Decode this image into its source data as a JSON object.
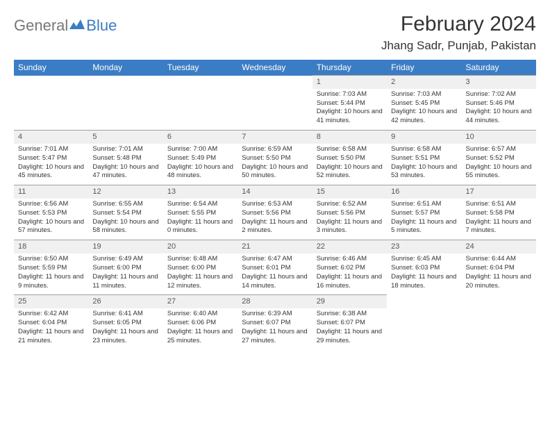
{
  "logo": {
    "text1": "General",
    "text2": "Blue"
  },
  "title": "February 2024",
  "location": "Jhang Sadr, Punjab, Pakistan",
  "colors": {
    "header_bg": "#3b7dc4",
    "header_text": "#ffffff",
    "daynum_bg": "#f0f0f0",
    "border": "#a0a0a0",
    "body_text": "#333333"
  },
  "day_headers": [
    "Sunday",
    "Monday",
    "Tuesday",
    "Wednesday",
    "Thursday",
    "Friday",
    "Saturday"
  ],
  "weeks": [
    [
      {
        "n": "",
        "sr": "",
        "ss": "",
        "dl": ""
      },
      {
        "n": "",
        "sr": "",
        "ss": "",
        "dl": ""
      },
      {
        "n": "",
        "sr": "",
        "ss": "",
        "dl": ""
      },
      {
        "n": "",
        "sr": "",
        "ss": "",
        "dl": ""
      },
      {
        "n": "1",
        "sr": "Sunrise: 7:03 AM",
        "ss": "Sunset: 5:44 PM",
        "dl": "Daylight: 10 hours and 41 minutes."
      },
      {
        "n": "2",
        "sr": "Sunrise: 7:03 AM",
        "ss": "Sunset: 5:45 PM",
        "dl": "Daylight: 10 hours and 42 minutes."
      },
      {
        "n": "3",
        "sr": "Sunrise: 7:02 AM",
        "ss": "Sunset: 5:46 PM",
        "dl": "Daylight: 10 hours and 44 minutes."
      }
    ],
    [
      {
        "n": "4",
        "sr": "Sunrise: 7:01 AM",
        "ss": "Sunset: 5:47 PM",
        "dl": "Daylight: 10 hours and 45 minutes."
      },
      {
        "n": "5",
        "sr": "Sunrise: 7:01 AM",
        "ss": "Sunset: 5:48 PM",
        "dl": "Daylight: 10 hours and 47 minutes."
      },
      {
        "n": "6",
        "sr": "Sunrise: 7:00 AM",
        "ss": "Sunset: 5:49 PM",
        "dl": "Daylight: 10 hours and 48 minutes."
      },
      {
        "n": "7",
        "sr": "Sunrise: 6:59 AM",
        "ss": "Sunset: 5:50 PM",
        "dl": "Daylight: 10 hours and 50 minutes."
      },
      {
        "n": "8",
        "sr": "Sunrise: 6:58 AM",
        "ss": "Sunset: 5:50 PM",
        "dl": "Daylight: 10 hours and 52 minutes."
      },
      {
        "n": "9",
        "sr": "Sunrise: 6:58 AM",
        "ss": "Sunset: 5:51 PM",
        "dl": "Daylight: 10 hours and 53 minutes."
      },
      {
        "n": "10",
        "sr": "Sunrise: 6:57 AM",
        "ss": "Sunset: 5:52 PM",
        "dl": "Daylight: 10 hours and 55 minutes."
      }
    ],
    [
      {
        "n": "11",
        "sr": "Sunrise: 6:56 AM",
        "ss": "Sunset: 5:53 PM",
        "dl": "Daylight: 10 hours and 57 minutes."
      },
      {
        "n": "12",
        "sr": "Sunrise: 6:55 AM",
        "ss": "Sunset: 5:54 PM",
        "dl": "Daylight: 10 hours and 58 minutes."
      },
      {
        "n": "13",
        "sr": "Sunrise: 6:54 AM",
        "ss": "Sunset: 5:55 PM",
        "dl": "Daylight: 11 hours and 0 minutes."
      },
      {
        "n": "14",
        "sr": "Sunrise: 6:53 AM",
        "ss": "Sunset: 5:56 PM",
        "dl": "Daylight: 11 hours and 2 minutes."
      },
      {
        "n": "15",
        "sr": "Sunrise: 6:52 AM",
        "ss": "Sunset: 5:56 PM",
        "dl": "Daylight: 11 hours and 3 minutes."
      },
      {
        "n": "16",
        "sr": "Sunrise: 6:51 AM",
        "ss": "Sunset: 5:57 PM",
        "dl": "Daylight: 11 hours and 5 minutes."
      },
      {
        "n": "17",
        "sr": "Sunrise: 6:51 AM",
        "ss": "Sunset: 5:58 PM",
        "dl": "Daylight: 11 hours and 7 minutes."
      }
    ],
    [
      {
        "n": "18",
        "sr": "Sunrise: 6:50 AM",
        "ss": "Sunset: 5:59 PM",
        "dl": "Daylight: 11 hours and 9 minutes."
      },
      {
        "n": "19",
        "sr": "Sunrise: 6:49 AM",
        "ss": "Sunset: 6:00 PM",
        "dl": "Daylight: 11 hours and 11 minutes."
      },
      {
        "n": "20",
        "sr": "Sunrise: 6:48 AM",
        "ss": "Sunset: 6:00 PM",
        "dl": "Daylight: 11 hours and 12 minutes."
      },
      {
        "n": "21",
        "sr": "Sunrise: 6:47 AM",
        "ss": "Sunset: 6:01 PM",
        "dl": "Daylight: 11 hours and 14 minutes."
      },
      {
        "n": "22",
        "sr": "Sunrise: 6:46 AM",
        "ss": "Sunset: 6:02 PM",
        "dl": "Daylight: 11 hours and 16 minutes."
      },
      {
        "n": "23",
        "sr": "Sunrise: 6:45 AM",
        "ss": "Sunset: 6:03 PM",
        "dl": "Daylight: 11 hours and 18 minutes."
      },
      {
        "n": "24",
        "sr": "Sunrise: 6:44 AM",
        "ss": "Sunset: 6:04 PM",
        "dl": "Daylight: 11 hours and 20 minutes."
      }
    ],
    [
      {
        "n": "25",
        "sr": "Sunrise: 6:42 AM",
        "ss": "Sunset: 6:04 PM",
        "dl": "Daylight: 11 hours and 21 minutes."
      },
      {
        "n": "26",
        "sr": "Sunrise: 6:41 AM",
        "ss": "Sunset: 6:05 PM",
        "dl": "Daylight: 11 hours and 23 minutes."
      },
      {
        "n": "27",
        "sr": "Sunrise: 6:40 AM",
        "ss": "Sunset: 6:06 PM",
        "dl": "Daylight: 11 hours and 25 minutes."
      },
      {
        "n": "28",
        "sr": "Sunrise: 6:39 AM",
        "ss": "Sunset: 6:07 PM",
        "dl": "Daylight: 11 hours and 27 minutes."
      },
      {
        "n": "29",
        "sr": "Sunrise: 6:38 AM",
        "ss": "Sunset: 6:07 PM",
        "dl": "Daylight: 11 hours and 29 minutes."
      },
      {
        "n": "",
        "sr": "",
        "ss": "",
        "dl": ""
      },
      {
        "n": "",
        "sr": "",
        "ss": "",
        "dl": ""
      }
    ]
  ]
}
